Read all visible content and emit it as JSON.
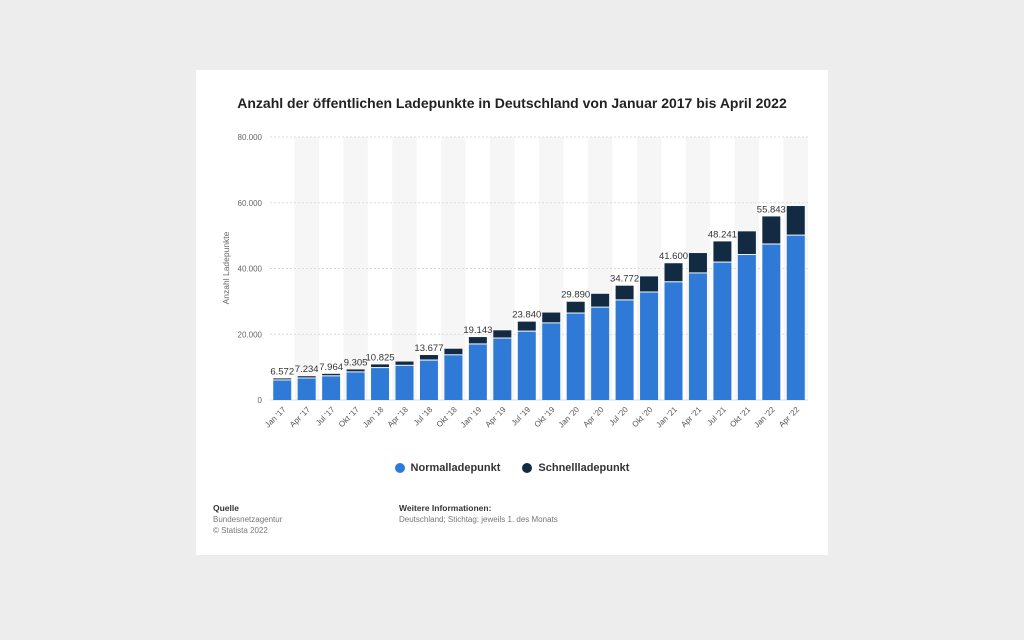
{
  "title": "Anzahl der öffentlichen Ladepunkte in Deutschland von Januar 2017 bis April 2022",
  "chart_data": {
    "type": "bar",
    "stacked": true,
    "title": "Anzahl der öffentlichen Ladepunkte in Deutschland von Januar 2017 bis April 2022",
    "xlabel": "",
    "ylabel": "Anzahl Ladepunkte",
    "ylim": [
      0,
      80000
    ],
    "yticks": [
      0,
      20000,
      40000,
      60000,
      80000
    ],
    "ytick_labels": [
      "0",
      "20.000",
      "40.000",
      "60.000",
      "80.000"
    ],
    "grid": true,
    "legend_position": "bottom",
    "categories": [
      "Jan '17",
      "Apr '17",
      "Jul '17",
      "Okt '17",
      "Jan '18",
      "Apr '18",
      "Jul '18",
      "Okt '18",
      "Jan '19",
      "Apr '19",
      "Jul '19",
      "Okt '19",
      "Jan '20",
      "Apr '20",
      "Jul '20",
      "Okt '20",
      "Jan '21",
      "Apr '21",
      "Jul '21",
      "Okt '21",
      "Jan '22",
      "Apr '22"
    ],
    "series": [
      {
        "name": "Normalladepunkt",
        "color": "#2f7ad6",
        "values": [
          5950,
          6550,
          7200,
          8400,
          9700,
          10400,
          12000,
          13600,
          16900,
          18700,
          20800,
          23300,
          26300,
          28100,
          30300,
          32700,
          35800,
          38500,
          41800,
          44100,
          47300,
          50000
        ]
      },
      {
        "name": "Schnellladepunkt",
        "color": "#132a43",
        "values": [
          620,
          690,
          760,
          900,
          1130,
          1300,
          1680,
          2000,
          2240,
          2500,
          3040,
          3300,
          3590,
          4200,
          4470,
          4900,
          5800,
          6200,
          6440,
          7200,
          8540,
          9000
        ]
      }
    ],
    "data_labels": [
      "6.572",
      "7.234",
      "7.964",
      "9.305",
      "10.825",
      "",
      "13.677",
      "",
      "19.143",
      "",
      "23.840",
      "",
      "29.890",
      "",
      "34.772",
      "",
      "41.600",
      "",
      "48.241",
      "",
      "55.843",
      ""
    ]
  },
  "legend": {
    "normal": "Normalladepunkt",
    "fast": "Schnellladepunkt",
    "normal_color": "#2f7ad6",
    "fast_color": "#132a43"
  },
  "footer": {
    "source_head": "Quelle",
    "source_line1": "Bundesnetzagentur",
    "source_line2": "© Statista 2022",
    "info_head": "Weitere Informationen:",
    "info_line1": "Deutschland; Stichtag: jeweils 1. des Monats"
  }
}
